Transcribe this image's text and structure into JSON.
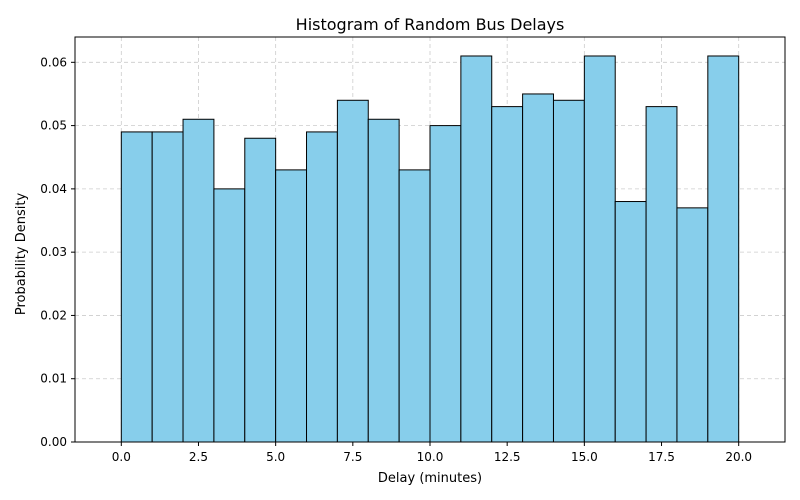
{
  "chart_data": {
    "type": "bar",
    "title": "Histogram of Random Bus Delays",
    "xlabel": "Delay (minutes)",
    "ylabel": "Probability Density",
    "bin_edges": [
      0,
      1,
      2,
      3,
      4,
      5,
      6,
      7,
      8,
      9,
      10,
      11,
      12,
      13,
      14,
      15,
      16,
      17,
      18,
      19,
      20
    ],
    "values": [
      0.049,
      0.049,
      0.051,
      0.04,
      0.048,
      0.043,
      0.049,
      0.054,
      0.051,
      0.043,
      0.05,
      0.061,
      0.053,
      0.055,
      0.054,
      0.061,
      0.038,
      0.053,
      0.037,
      0.061
    ],
    "xlim": [
      -1.5,
      21.5
    ],
    "ylim": [
      0,
      0.064
    ],
    "xticks": [
      0.0,
      2.5,
      5.0,
      7.5,
      10.0,
      12.5,
      15.0,
      17.5,
      20.0
    ],
    "xtick_labels": [
      "0.0",
      "2.5",
      "5.0",
      "7.5",
      "10.0",
      "12.5",
      "15.0",
      "17.5",
      "20.0"
    ],
    "yticks": [
      0.0,
      0.01,
      0.02,
      0.03,
      0.04,
      0.05,
      0.06
    ],
    "ytick_labels": [
      "0.00",
      "0.01",
      "0.02",
      "0.03",
      "0.04",
      "0.05",
      "0.06"
    ],
    "grid": true,
    "bar_color": "#87ceeb",
    "edge_color": "#000000",
    "grid_color": "#cccccc"
  }
}
